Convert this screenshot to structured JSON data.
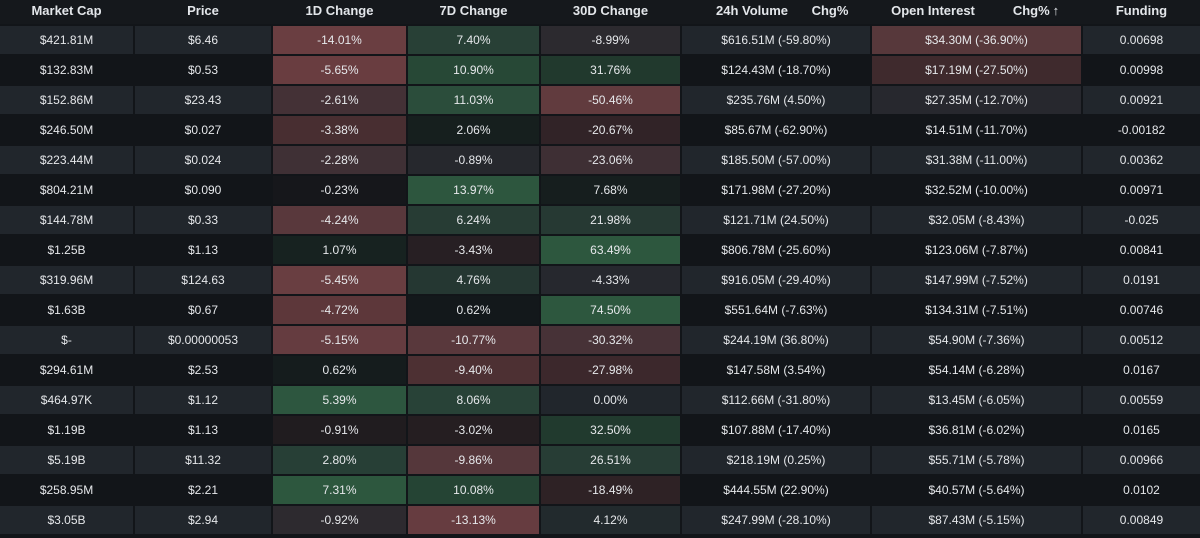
{
  "colors": {
    "page_bg": "#121519",
    "row_even_cell": "#21262c",
    "row_odd_cell": "#121519",
    "header_text": "#e3e6ea",
    "cell_text": "#e6e8eb",
    "positive_strong": "#2e5a40",
    "negative_strong": "#6e3f42"
  },
  "headers": {
    "market_cap": "Market Cap",
    "price": "Price",
    "change_1d": "1D Change",
    "change_7d": "7D Change",
    "change_30d": "30D Change",
    "volume_24h": "24h Volume",
    "volume_chg": "Chg%",
    "open_interest": "Open Interest",
    "oi_chg": "Chg%",
    "oi_chg_sort_icon": "sort-arrow-up-icon",
    "funding": "Funding"
  },
  "rows": [
    {
      "market_cap": "$421.81M",
      "price": "$6.46",
      "change_1d": "-14.01%",
      "change_7d": "7.40%",
      "change_30d": "-8.99%",
      "volume": "$616.51M (-59.80%)",
      "open_interest": "$34.30M (-36.90%)",
      "funding": "0.00698"
    },
    {
      "market_cap": "$132.83M",
      "price": "$0.53",
      "change_1d": "-5.65%",
      "change_7d": "10.90%",
      "change_30d": "31.76%",
      "volume": "$124.43M (-18.70%)",
      "open_interest": "$17.19M (-27.50%)",
      "funding": "0.00998"
    },
    {
      "market_cap": "$152.86M",
      "price": "$23.43",
      "change_1d": "-2.61%",
      "change_7d": "11.03%",
      "change_30d": "-50.46%",
      "volume": "$235.76M (4.50%)",
      "open_interest": "$27.35M (-12.70%)",
      "funding": "0.00921"
    },
    {
      "market_cap": "$246.50M",
      "price": "$0.027",
      "change_1d": "-3.38%",
      "change_7d": "2.06%",
      "change_30d": "-20.67%",
      "volume": "$85.67M (-62.90%)",
      "open_interest": "$14.51M (-11.70%)",
      "funding": "-0.00182"
    },
    {
      "market_cap": "$223.44M",
      "price": "$0.024",
      "change_1d": "-2.28%",
      "change_7d": "-0.89%",
      "change_30d": "-23.06%",
      "volume": "$185.50M (-57.00%)",
      "open_interest": "$31.38M (-11.00%)",
      "funding": "0.00362"
    },
    {
      "market_cap": "$804.21M",
      "price": "$0.090",
      "change_1d": "-0.23%",
      "change_7d": "13.97%",
      "change_30d": "7.68%",
      "volume": "$171.98M (-27.20%)",
      "open_interest": "$32.52M (-10.00%)",
      "funding": "0.00971"
    },
    {
      "market_cap": "$144.78M",
      "price": "$0.33",
      "change_1d": "-4.24%",
      "change_7d": "6.24%",
      "change_30d": "21.98%",
      "volume": "$121.71M (24.50%)",
      "open_interest": "$32.05M (-8.43%)",
      "funding": "-0.025"
    },
    {
      "market_cap": "$1.25B",
      "price": "$1.13",
      "change_1d": "1.07%",
      "change_7d": "-3.43%",
      "change_30d": "63.49%",
      "volume": "$806.78M (-25.60%)",
      "open_interest": "$123.06M (-7.87%)",
      "funding": "0.00841"
    },
    {
      "market_cap": "$319.96M",
      "price": "$124.63",
      "change_1d": "-5.45%",
      "change_7d": "4.76%",
      "change_30d": "-4.33%",
      "volume": "$916.05M (-29.40%)",
      "open_interest": "$147.99M (-7.52%)",
      "funding": "0.0191"
    },
    {
      "market_cap": "$1.63B",
      "price": "$0.67",
      "change_1d": "-4.72%",
      "change_7d": "0.62%",
      "change_30d": "74.50%",
      "volume": "$551.64M (-7.63%)",
      "open_interest": "$134.31M (-7.51%)",
      "funding": "0.00746"
    },
    {
      "market_cap": "$-",
      "price": "$0.00000053",
      "change_1d": "-5.15%",
      "change_7d": "-10.77%",
      "change_30d": "-30.32%",
      "volume": "$244.19M (36.80%)",
      "open_interest": "$54.90M (-7.36%)",
      "funding": "0.00512"
    },
    {
      "market_cap": "$294.61M",
      "price": "$2.53",
      "change_1d": "0.62%",
      "change_7d": "-9.40%",
      "change_30d": "-27.98%",
      "volume": "$147.58M (3.54%)",
      "open_interest": "$54.14M (-6.28%)",
      "funding": "0.0167"
    },
    {
      "market_cap": "$464.97K",
      "price": "$1.12",
      "change_1d": "5.39%",
      "change_7d": "8.06%",
      "change_30d": "0.00%",
      "volume": "$112.66M (-31.80%)",
      "open_interest": "$13.45M (-6.05%)",
      "funding": "0.00559"
    },
    {
      "market_cap": "$1.19B",
      "price": "$1.13",
      "change_1d": "-0.91%",
      "change_7d": "-3.02%",
      "change_30d": "32.50%",
      "volume": "$107.88M (-17.40%)",
      "open_interest": "$36.81M (-6.02%)",
      "funding": "0.0165"
    },
    {
      "market_cap": "$5.19B",
      "price": "$11.32",
      "change_1d": "2.80%",
      "change_7d": "-9.86%",
      "change_30d": "26.51%",
      "volume": "$218.19M (0.25%)",
      "open_interest": "$55.71M (-5.78%)",
      "funding": "0.00966"
    },
    {
      "market_cap": "$258.95M",
      "price": "$2.21",
      "change_1d": "7.31%",
      "change_7d": "10.08%",
      "change_30d": "-18.49%",
      "volume": "$444.55M (22.90%)",
      "open_interest": "$40.57M (-5.64%)",
      "funding": "0.0102"
    },
    {
      "market_cap": "$3.05B",
      "price": "$2.94",
      "change_1d": "-0.92%",
      "change_7d": "-13.13%",
      "change_30d": "4.12%",
      "volume": "$247.99M (-28.10%)",
      "open_interest": "$87.43M (-5.15%)",
      "funding": "0.00849"
    }
  ]
}
